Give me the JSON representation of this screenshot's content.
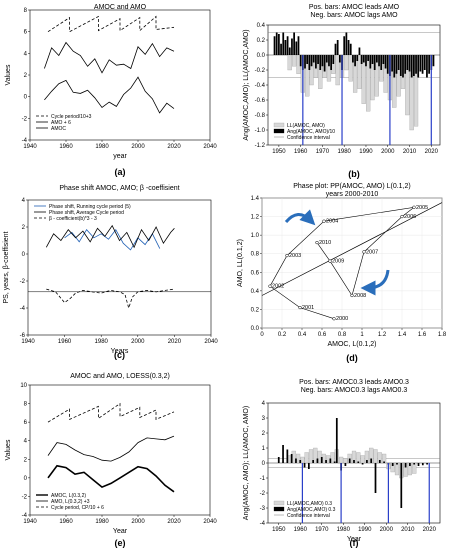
{
  "chart_data": [
    {
      "id": "a",
      "type": "line",
      "panel_label": "(a)",
      "title": "AMOC and AMO",
      "xlabel": "year",
      "ylabel": "Values",
      "xlim": [
        1940,
        2040
      ],
      "ylim": [
        -4,
        8
      ],
      "x_ticks": [
        1940,
        1960,
        1980,
        2000,
        2020,
        2040
      ],
      "y_ticks": [
        -4,
        -2,
        0,
        2,
        4,
        6,
        8
      ],
      "legend": [
        "Cycle period/10+3",
        "AMO + 6",
        "AMOC"
      ],
      "series": [
        {
          "name": "Cycle period/10+3",
          "style": "dashed",
          "x": [
            1950,
            1962,
            1962,
            1978,
            1978,
            1990,
            1990,
            2001,
            2001,
            2010,
            2010,
            2020
          ],
          "y": [
            6.0,
            7.3,
            6.0,
            7.4,
            6.1,
            7.2,
            6.1,
            7.3,
            6.1,
            7.4,
            6.2,
            6.4
          ]
        },
        {
          "name": "AMO + 6",
          "style": "solid",
          "x": [
            1948,
            1952,
            1956,
            1960,
            1964,
            1968,
            1972,
            1976,
            1980,
            1984,
            1988,
            1992,
            1996,
            2000,
            2004,
            2008,
            2012,
            2016,
            2020
          ],
          "y": [
            2.6,
            4.5,
            3.8,
            5.0,
            4.2,
            3.8,
            2.8,
            3.5,
            2.2,
            3.4,
            2.9,
            3.0,
            2.6,
            4.6,
            3.9,
            4.9,
            3.7,
            4.5,
            4.2
          ]
        },
        {
          "name": "AMOC",
          "style": "solid",
          "x": [
            1948,
            1952,
            1956,
            1960,
            1964,
            1968,
            1972,
            1976,
            1980,
            1984,
            1988,
            1992,
            1996,
            2000,
            2004,
            2008,
            2012,
            2016,
            2020
          ],
          "y": [
            -0.3,
            0.5,
            1.2,
            1.5,
            0.4,
            0.3,
            0.6,
            -0.1,
            -1.0,
            -0.5,
            -0.9,
            0.2,
            0.8,
            1.8,
            0.5,
            -0.2,
            -1.5,
            -0.6,
            -1.1
          ]
        }
      ]
    },
    {
      "id": "b",
      "type": "bar",
      "panel_label": "(b)",
      "title": "Pos. bars: AMOC leads AMO",
      "subtitle": "Neg. bars: AMOC lags AMO",
      "xlabel": "",
      "ylabel": "Ang(AMOC,AMO); LL(AMOC,AMO)",
      "xlim": [
        1945,
        2024
      ],
      "ylim": [
        -1.2,
        0.4
      ],
      "x_ticks": [
        1950,
        1960,
        1970,
        1980,
        1990,
        2000,
        2010,
        2020
      ],
      "y_ticks": [
        -1.2,
        -1.0,
        -0.8,
        -0.6,
        -0.4,
        -0.2,
        0.0,
        0.2,
        0.4
      ],
      "legend": [
        "LL(AMOC, AMO)",
        "Ang(AMOC, AMO)/10",
        "Confidence interval"
      ],
      "confidence_interval": [
        -0.3,
        0.3
      ],
      "vertical_lines": [
        1961,
        1979,
        2001,
        2020
      ],
      "series": [
        {
          "name": "LL(AMOC, AMO)",
          "x": [
            1955,
            1957,
            1959,
            1961,
            1963,
            1965,
            1967,
            1969,
            1971,
            1973,
            1975,
            1977,
            1979,
            1981,
            1983,
            1985,
            1987,
            1989,
            1991,
            1993,
            1995,
            1997,
            1999,
            2001,
            2003,
            2005,
            2007,
            2009,
            2011,
            2013
          ],
          "values": [
            -0.2,
            -0.15,
            -0.25,
            -0.5,
            -0.55,
            -0.4,
            -0.3,
            -0.45,
            -0.3,
            -0.35,
            -0.25,
            -0.4,
            -0.3,
            -0.2,
            -0.35,
            -0.5,
            -0.45,
            -0.65,
            -0.75,
            -0.6,
            -0.55,
            -0.35,
            -0.5,
            -0.6,
            -0.7,
            -0.55,
            -0.45,
            -0.8,
            -1.0,
            -0.95
          ]
        },
        {
          "name": "Ang(AMOC, AMO)/10",
          "x": [
            1948,
            1949,
            1950,
            1951,
            1952,
            1953,
            1954,
            1955,
            1956,
            1957,
            1958,
            1959,
            1960,
            1961,
            1962,
            1963,
            1964,
            1965,
            1966,
            1967,
            1968,
            1969,
            1970,
            1971,
            1972,
            1973,
            1974,
            1975,
            1976,
            1977,
            1978,
            1979,
            1980,
            1981,
            1982,
            1983,
            1984,
            1985,
            1986,
            1987,
            1988,
            1989,
            1990,
            1991,
            1992,
            1993,
            1994,
            1995,
            1996,
            1997,
            1998,
            1999,
            2000,
            2001,
            2002,
            2003,
            2004,
            2005,
            2006,
            2007,
            2008,
            2009,
            2010,
            2011,
            2012,
            2013,
            2014,
            2015,
            2016,
            2017,
            2018,
            2019,
            2020,
            2021
          ],
          "values": [
            0.25,
            0.3,
            0.28,
            0.15,
            0.3,
            0.2,
            0.25,
            0.1,
            0.22,
            0.3,
            0.18,
            0.25,
            -0.15,
            -0.2,
            -0.18,
            -0.12,
            -0.2,
            -0.15,
            -0.1,
            -0.18,
            -0.12,
            -0.2,
            -0.15,
            -0.22,
            -0.1,
            -0.15,
            -0.2,
            -0.12,
            0.15,
            0.2,
            -0.1,
            -0.2,
            0.25,
            0.3,
            0.2,
            0.15,
            -0.1,
            -0.15,
            -0.08,
            0.1,
            -0.12,
            -0.1,
            -0.15,
            -0.08,
            -0.18,
            -0.12,
            -0.2,
            -0.1,
            -0.15,
            -0.2,
            -0.12,
            -0.18,
            -0.25,
            -0.28,
            -0.22,
            -0.3,
            -0.25,
            -0.2,
            -0.28,
            -0.3,
            -0.25,
            -0.2,
            -0.22,
            -0.3,
            -0.28,
            -0.25,
            -0.3,
            -0.22,
            -0.25,
            -0.2,
            -0.3,
            -0.25,
            -0.2,
            -0.15
          ]
        }
      ]
    },
    {
      "id": "c",
      "type": "line",
      "panel_label": "(c)",
      "title": "Phase shift AMOC, AMO; β -coeffisient",
      "xlabel": "Years",
      "ylabel": "PS, years, β-coeffisient",
      "xlim": [
        1940,
        2040
      ],
      "ylim": [
        -6,
        4
      ],
      "x_ticks": [
        1940,
        1960,
        1980,
        2000,
        2020,
        2040
      ],
      "y_ticks": [
        -6,
        -4,
        -2,
        0,
        2,
        4
      ],
      "legend": [
        "Phase shift, Running cycle period (5)",
        "Phase shift, Average Cycle period",
        "β - coefficient(b)*3 - 3"
      ],
      "reference_line": -2.8,
      "series": [
        {
          "name": "Phase shift, Running cycle period (5)",
          "color": "#1f5fb4",
          "x": [
            1960,
            1964,
            1968,
            1972,
            1976,
            1980,
            1984,
            1988,
            1992,
            1996,
            2000,
            2004,
            2008,
            2012
          ],
          "y": [
            1.2,
            1.6,
            0.9,
            1.8,
            1.2,
            1.5,
            1.1,
            1.8,
            0.8,
            0.3,
            1.2,
            0.7,
            1.5,
            0.4
          ]
        },
        {
          "name": "Phase shift, Average Cycle period",
          "color": "#000000",
          "x": [
            1950,
            1954,
            1958,
            1962,
            1966,
            1970,
            1974,
            1978,
            1982,
            1986,
            1990,
            1994,
            1998,
            2002,
            2006,
            2010,
            2014,
            2018,
            2020
          ],
          "y": [
            0.5,
            1.5,
            1.0,
            1.8,
            1.2,
            1.7,
            0.9,
            1.9,
            1.3,
            2.1,
            1.0,
            1.6,
            0.5,
            1.8,
            1.0,
            2.0,
            0.8,
            1.6,
            1.9
          ]
        },
        {
          "name": "β - coefficient(b)*3 - 3",
          "style": "dashed",
          "x": [
            1950,
            1955,
            1960,
            1963,
            1966,
            1970,
            1975,
            1980,
            1985,
            1990,
            1993,
            1995,
            1997,
            2000,
            2005,
            2010,
            2015,
            2020
          ],
          "y": [
            -2.6,
            -2.8,
            -3.6,
            -3.3,
            -2.9,
            -2.7,
            -2.8,
            -2.9,
            -2.7,
            -2.8,
            -3.0,
            -4.0,
            -3.2,
            -2.8,
            -2.7,
            -2.8,
            -2.7,
            -2.6
          ]
        }
      ]
    },
    {
      "id": "d",
      "type": "scatter",
      "panel_label": "(d)",
      "title": "Phase plot: PP(AMOC, AMO) L(0.1,2)",
      "subtitle": "years 2000-2010",
      "xlabel": "AMOC, L(0.1,2)",
      "ylabel": "AMO, LL(0.1,2)",
      "xlim": [
        0,
        1.8
      ],
      "ylim": [
        0,
        1.4
      ],
      "x_ticks": [
        0.0,
        0.2,
        0.4,
        0.6,
        0.8,
        1.0,
        1.2,
        1.4,
        1.6,
        1.8
      ],
      "y_ticks": [
        0.0,
        0.2,
        0.4,
        0.6,
        0.8,
        1.0,
        1.2,
        1.4
      ],
      "points": [
        {
          "label": "2000",
          "x": 0.72,
          "y": 0.1
        },
        {
          "label": "2001",
          "x": 0.38,
          "y": 0.22
        },
        {
          "label": "2002",
          "x": 0.08,
          "y": 0.45
        },
        {
          "label": "2003",
          "x": 0.25,
          "y": 0.78
        },
        {
          "label": "2004",
          "x": 0.62,
          "y": 1.15
        },
        {
          "label": "2005",
          "x": 1.52,
          "y": 1.3
        },
        {
          "label": "2006",
          "x": 1.4,
          "y": 1.2
        },
        {
          "label": "2007",
          "x": 1.02,
          "y": 0.82
        },
        {
          "label": "2008",
          "x": 0.9,
          "y": 0.35
        },
        {
          "label": "2009",
          "x": 0.68,
          "y": 0.72
        },
        {
          "label": "2010",
          "x": 0.55,
          "y": 0.92
        }
      ],
      "trend_line": {
        "x": [
          0,
          1.8
        ],
        "y": [
          0.35,
          1.35
        ]
      }
    },
    {
      "id": "e",
      "type": "line",
      "panel_label": "(e)",
      "title": "AMOC and AMO, LOESS(0.3,2)",
      "xlabel": "Year",
      "ylabel": "Values",
      "xlim": [
        1940,
        2040
      ],
      "ylim": [
        -4,
        10
      ],
      "x_ticks": [
        1940,
        1960,
        1980,
        2000,
        2020,
        2040
      ],
      "y_ticks": [
        -4,
        -2,
        0,
        2,
        4,
        6,
        8,
        10
      ],
      "legend": [
        "AMOC, L(0.3,2)",
        "AMO, L(0.3,2) +3",
        "Cycle period, CP/10 + 6"
      ],
      "series": [
        {
          "name": "AMOC, L(0.3,2)",
          "style": "solid-thick",
          "x": [
            1950,
            1955,
            1960,
            1965,
            1970,
            1975,
            1980,
            1985,
            1990,
            1995,
            2000,
            2005,
            2010,
            2015,
            2020
          ],
          "y": [
            0.0,
            1.3,
            1.1,
            0.4,
            0.6,
            -0.2,
            -1.0,
            -0.6,
            0.0,
            0.6,
            1.2,
            1.0,
            0.2,
            -0.8,
            -1.5
          ]
        },
        {
          "name": "AMO, L(0.3,2) +3",
          "style": "solid",
          "x": [
            1950,
            1955,
            1960,
            1965,
            1970,
            1975,
            1980,
            1985,
            1990,
            1995,
            2000,
            2005,
            2010,
            2015,
            2020
          ],
          "y": [
            2.4,
            3.8,
            3.6,
            3.0,
            2.5,
            2.3,
            1.9,
            1.8,
            2.2,
            2.8,
            3.8,
            4.3,
            4.2,
            4.1,
            4.5
          ]
        },
        {
          "name": "Cycle period, CP/10 + 6",
          "style": "dashed",
          "x": [
            1950,
            1962,
            1962,
            1978,
            1978,
            1990,
            1990,
            2001,
            2001,
            2010,
            2010,
            2020
          ],
          "y": [
            6.0,
            7.4,
            6.3,
            7.7,
            6.4,
            8.0,
            6.6,
            7.6,
            6.5,
            7.3,
            6.3,
            7.1
          ]
        }
      ]
    },
    {
      "id": "f",
      "type": "bar",
      "panel_label": "(f)",
      "title": "Pos. bars: AMOC0.3 leads AMO0.3",
      "subtitle": "Neg. bars: AMOC0.3 lags AMO0.3",
      "xlabel": "Year",
      "ylabel": "Ang(AMOC, AMO); LL(AMOC, AMO)",
      "xlim": [
        1945,
        2025
      ],
      "ylim": [
        -4,
        4
      ],
      "x_ticks": [
        1950,
        1960,
        1970,
        1980,
        1990,
        2000,
        2010,
        2020
      ],
      "y_ticks": [
        -4,
        -3,
        -2,
        -1,
        0,
        1,
        2,
        3,
        4
      ],
      "legend": [
        "LL(AMOC,AMO) 0.3",
        "Ang(AMOC,AMO) 0.3",
        "Confidence interval"
      ],
      "confidence_interval": [
        -0.3,
        0.3
      ],
      "vertical_lines": [
        1961,
        1979,
        2001,
        2020
      ],
      "series": [
        {
          "name": "LL(AMOC,AMO) 0.3",
          "x": [
            1955,
            1957,
            1959,
            1961,
            1963,
            1965,
            1967,
            1969,
            1971,
            1973,
            1975,
            1977,
            1979,
            1981,
            1983,
            1985,
            1987,
            1989,
            1991,
            1993,
            1995,
            1997,
            1999,
            2001,
            2003,
            2005,
            2007,
            2009,
            2011,
            2013
          ],
          "values": [
            0.5,
            0.8,
            0.6,
            0.4,
            0.7,
            0.9,
            1.0,
            0.8,
            0.6,
            0.5,
            0.7,
            0.9,
            0.4,
            0.3,
            0.6,
            0.8,
            0.7,
            0.5,
            0.8,
            1.0,
            0.9,
            0.7,
            0.6,
            -0.4,
            -0.6,
            -0.8,
            -1.0,
            -0.9,
            -0.8,
            -0.7
          ]
        },
        {
          "name": "Ang(AMOC,AMO) 0.3",
          "x": [
            1950,
            1952,
            1954,
            1956,
            1958,
            1960,
            1962,
            1964,
            1966,
            1968,
            1970,
            1972,
            1974,
            1976,
            1977,
            1979,
            1981,
            1983,
            1985,
            1987,
            1989,
            1991,
            1993,
            1995,
            1997,
            1999,
            2001,
            2003,
            2005,
            2007,
            2009,
            2011,
            2013,
            2015,
            2017,
            2019
          ],
          "values": [
            0.4,
            1.2,
            0.9,
            0.6,
            0.3,
            0.2,
            -0.3,
            -0.4,
            0.2,
            0.3,
            0.4,
            0.2,
            0.3,
            0.1,
            3.0,
            -0.5,
            -0.2,
            0.3,
            0.2,
            0.1,
            -0.1,
            0.2,
            0.3,
            -2.0,
            0.2,
            0.1,
            -0.1,
            -0.2,
            -0.1,
            -3.0,
            -0.3,
            -0.2,
            -0.1,
            -0.2,
            -0.15,
            -0.1
          ]
        }
      ]
    }
  ]
}
